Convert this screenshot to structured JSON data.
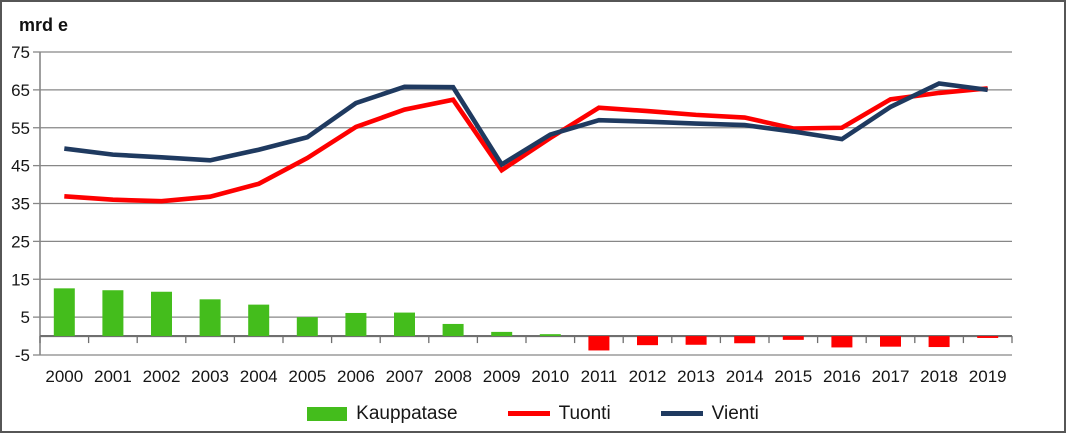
{
  "chart_data": {
    "type": "combo-bar-line",
    "title": "mrd e",
    "categories": [
      "2000",
      "2001",
      "2002",
      "2003",
      "2004",
      "2005",
      "2006",
      "2007",
      "2008",
      "2009",
      "2010",
      "2011",
      "2012",
      "2013",
      "2014",
      "2015",
      "2016",
      "2017",
      "2018",
      "2019"
    ],
    "y_ticks": [
      -5,
      5,
      15,
      25,
      35,
      45,
      55,
      65,
      75
    ],
    "ylim": [
      -5,
      75
    ],
    "grid": true,
    "legend_position": "bottom",
    "series": [
      {
        "name": "Kauppatase",
        "type": "bar",
        "color": "#44BD1C",
        "negative_color": "#FE0000",
        "values": [
          12.6,
          12.1,
          11.7,
          9.7,
          8.3,
          5.0,
          6.1,
          6.2,
          3.2,
          1.1,
          0.5,
          -3.8,
          -2.4,
          -2.3,
          -1.9,
          -1.0,
          -3.0,
          -2.8,
          -2.9,
          -0.5
        ]
      },
      {
        "name": "Tuonti",
        "type": "line",
        "color": "#FE0000",
        "values": [
          36.9,
          36.0,
          35.6,
          36.8,
          40.2,
          47.0,
          55.2,
          59.8,
          62.4,
          43.8,
          52.3,
          60.3,
          59.4,
          58.4,
          57.7,
          54.8,
          55.0,
          62.5,
          64.2,
          65.4
        ]
      },
      {
        "name": "Vienti",
        "type": "line",
        "color": "#1F3A60",
        "values": [
          49.5,
          47.9,
          47.2,
          46.4,
          49.2,
          52.5,
          61.5,
          65.8,
          65.7,
          45.3,
          53.2,
          57.0,
          56.6,
          56.1,
          55.7,
          54.0,
          52.0,
          60.5,
          66.7,
          65.0
        ]
      }
    ]
  }
}
